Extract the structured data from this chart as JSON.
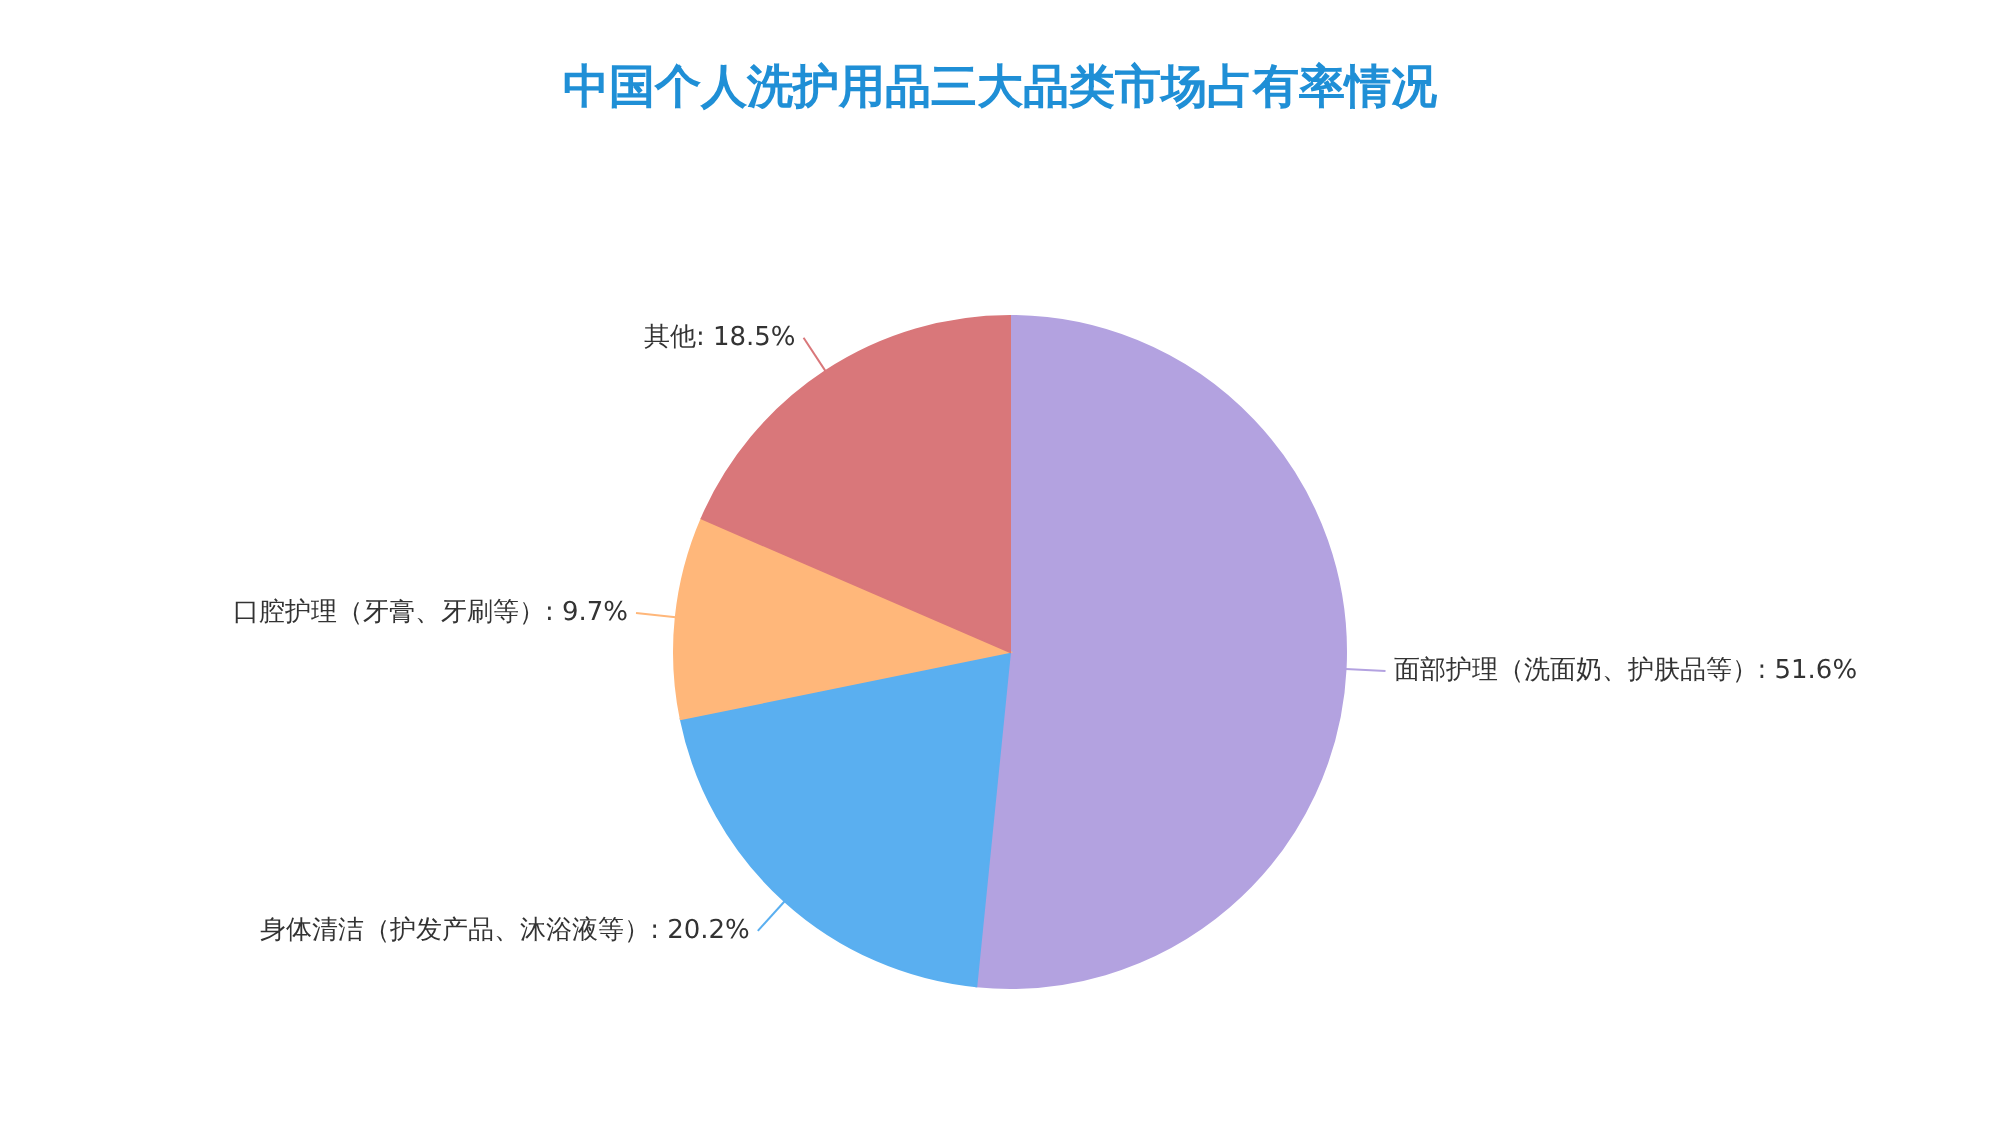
{
  "chart_data": {
    "type": "pie",
    "title": "中国个人洗护用品三大品类市场占有率情况",
    "categories": [
      "面部护理（洗面奶、护肤品等）",
      "身体清洁（护发产品、沐浴液等）",
      "口腔护理（牙膏、牙刷等）",
      "其他"
    ],
    "values": [
      51.6,
      20.2,
      9.7,
      18.5
    ],
    "colors": [
      "#b3a2e0",
      "#5aaff0",
      "#ffb77a",
      "#d9777a"
    ],
    "value_labels": [
      "51.6%",
      "20.2%",
      "9.7%",
      "18.5%"
    ],
    "legend": false
  }
}
